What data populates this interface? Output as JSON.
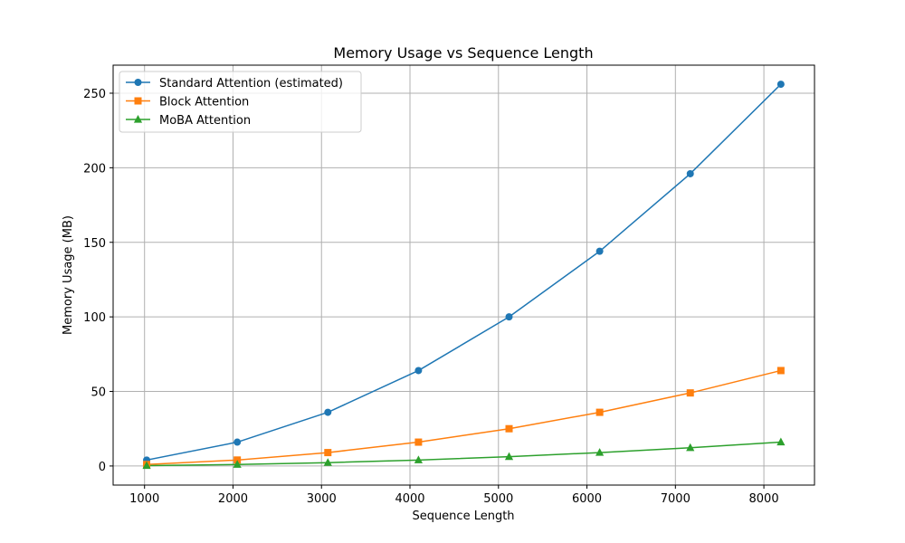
{
  "chart_data": {
    "type": "line",
    "title": "Memory Usage vs Sequence Length",
    "xlabel": "Sequence Length",
    "ylabel": "Memory Usage (MB)",
    "x": [
      1024,
      2048,
      3072,
      4096,
      5120,
      6144,
      7168,
      8192
    ],
    "xlim": [
      645,
      8572
    ],
    "ylim": [
      -12.8,
      268.8
    ],
    "xticks": [
      1000,
      2000,
      3000,
      4000,
      5000,
      6000,
      7000,
      8000
    ],
    "yticks": [
      0,
      50,
      100,
      150,
      200,
      250
    ],
    "grid": true,
    "legend_position": "top-left",
    "series": [
      {
        "name": "Standard Attention (estimated)",
        "color": "#1f77b4",
        "marker": "circle",
        "values": [
          4,
          16,
          36,
          64,
          100,
          144,
          196,
          256
        ]
      },
      {
        "name": "Block Attention",
        "color": "#ff7f0e",
        "marker": "square",
        "values": [
          1,
          4,
          9,
          16,
          25,
          36,
          49,
          64
        ]
      },
      {
        "name": "MoBA Attention",
        "color": "#2ca02c",
        "marker": "triangle",
        "values": [
          0.25,
          1,
          2.25,
          4,
          6.25,
          9,
          12.25,
          16
        ]
      }
    ]
  }
}
